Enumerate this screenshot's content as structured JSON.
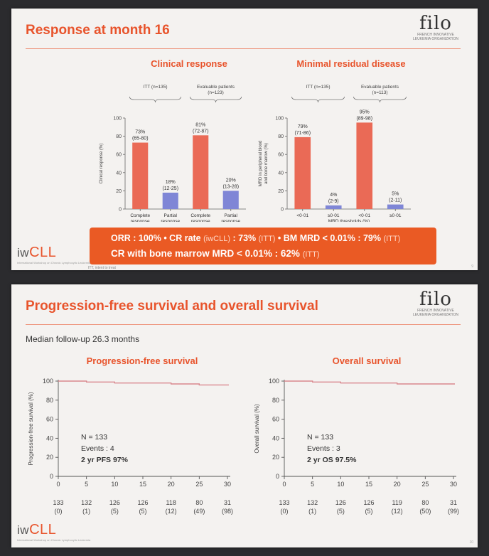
{
  "slide1": {
    "title": "Response at month 16",
    "logo": {
      "word": "filo",
      "sub1": "FRENCH INNOVATIVE",
      "sub2": "LEUKEMIA ORGANIZATION"
    },
    "clinical_title": "Clinical response",
    "mrd_title": "Minimal residual disease",
    "banner_line1_a": "ORR : 100%  •  CR rate ",
    "banner_line1_b": "(iwCLL)",
    "banner_line1_c": " : 73% ",
    "banner_line1_d": "(ITT)",
    "banner_line1_e": "  •  BM MRD < 0.01% : 79% ",
    "banner_line1_f": "(ITT)",
    "banner_line2_a": "CR with bone marrow MRD < 0.01% : 62% ",
    "banner_line2_b": "(ITT)",
    "footnote": "ITT, intent to treat",
    "page": "9",
    "iwcll": {
      "pre": "iw",
      "main": "CLL",
      "sub": "International Workshop on Chronic Lymphocytic Leukemia"
    }
  },
  "slide2": {
    "title": "Progression-free survival and overall survival",
    "logo": {
      "word": "filo",
      "sub1": "FRENCH INNOVATIVE",
      "sub2": "LEUKEMIA ORGANIZATION"
    },
    "followup": "Median follow-up 26.3 months",
    "pfs_title": "Progression-free survival",
    "os_title": "Overall survival",
    "page": "10",
    "iwcll": {
      "pre": "iw",
      "main": "CLL",
      "sub": "International Workshop on Chronic Lymphocytic Leukemia"
    }
  },
  "colors": {
    "accent": "#e8542c",
    "bar_red": "#ea6a56",
    "bar_blue": "#7f86d6",
    "curve": "#d9888e"
  },
  "chart_data": [
    {
      "type": "bar",
      "id": "clinical",
      "ylabel": "Clinical response (%)",
      "ylim": [
        0,
        100
      ],
      "yticks": [
        0,
        20,
        40,
        60,
        80,
        100
      ],
      "groups": [
        {
          "label": "ITT (n=135)",
          "sublabel": ""
        },
        {
          "label": "Evaluable patients",
          "sublabel": "(n=123)"
        }
      ],
      "categories": [
        "Complete response",
        "Partial response",
        "Complete response",
        "Partial response"
      ],
      "cat_lines": [
        [
          "Complete",
          "response"
        ],
        [
          "Partial",
          "response"
        ],
        [
          "Complete",
          "response"
        ],
        [
          "Partial",
          "response"
        ]
      ],
      "values": [
        73,
        18,
        81,
        20
      ],
      "labels": [
        [
          "73%",
          "(65-80)"
        ],
        [
          "18%",
          "(12-25)"
        ],
        [
          "81%",
          "(72-87)"
        ],
        [
          "20%",
          "(13-28)"
        ]
      ],
      "bar_colors": [
        "red",
        "blue",
        "red",
        "blue"
      ]
    },
    {
      "type": "bar",
      "id": "mrd",
      "ylabel": "MRD in peripheral blood and bone marrow (%)",
      "ylabel_lines": [
        "MRD in peripheral blood",
        "and bone marrow (%)"
      ],
      "xlabel": "MRD thresholds (%)",
      "ylim": [
        0,
        100
      ],
      "yticks": [
        0,
        20,
        40,
        60,
        80,
        100
      ],
      "groups": [
        {
          "label": "ITT (n=135)",
          "sublabel": ""
        },
        {
          "label": "Evaluable patients",
          "sublabel": "(n=113)"
        }
      ],
      "categories": [
        "<0·01",
        "≥0·01",
        "<0·01",
        "≥0·01"
      ],
      "values": [
        79,
        4,
        95,
        5
      ],
      "labels": [
        [
          "79%",
          "(71-86)"
        ],
        [
          "4%",
          "(2-9)"
        ],
        [
          "95%",
          "(89-98)"
        ],
        [
          "5%",
          "(2-11)"
        ]
      ],
      "bar_colors": [
        "red",
        "blue",
        "red",
        "blue"
      ]
    },
    {
      "type": "line",
      "id": "pfs",
      "ylabel": "Progression-free survival (%)",
      "xlim": [
        0,
        30
      ],
      "ylim": [
        0,
        100
      ],
      "xticks": [
        0,
        5,
        10,
        15,
        20,
        25,
        30
      ],
      "yticks": [
        0,
        20,
        40,
        60,
        80,
        100
      ],
      "x": [
        0,
        5,
        5,
        10,
        10,
        20,
        20,
        25,
        25,
        31
      ],
      "y": [
        100,
        100,
        99,
        99,
        98,
        98,
        97,
        97,
        96,
        96
      ],
      "annot": [
        "N = 133",
        "Events : 4",
        "2 yr PFS 97%"
      ],
      "risk_n": [
        "133",
        "132",
        "126",
        "126",
        "118",
        "80",
        "31"
      ],
      "risk_c": [
        "(0)",
        "(1)",
        "(5)",
        "(5)",
        "(12)",
        "(49)",
        "(98)"
      ]
    },
    {
      "type": "line",
      "id": "os",
      "ylabel": "Overall survival (%)",
      "xlim": [
        0,
        30
      ],
      "ylim": [
        0,
        100
      ],
      "xticks": [
        0,
        5,
        10,
        15,
        20,
        25,
        30
      ],
      "yticks": [
        0,
        20,
        40,
        60,
        80,
        100
      ],
      "x": [
        0,
        5,
        5,
        10,
        10,
        20,
        20,
        31
      ],
      "y": [
        100,
        100,
        99,
        99,
        98,
        98,
        97,
        97
      ],
      "annot": [
        "N = 133",
        "Events : 3",
        "2 yr OS 97.5%"
      ],
      "risk_n": [
        "133",
        "132",
        "126",
        "126",
        "119",
        "80",
        "31"
      ],
      "risk_c": [
        "(0)",
        "(1)",
        "(5)",
        "(5)",
        "(12)",
        "(50)",
        "(99)"
      ]
    }
  ]
}
